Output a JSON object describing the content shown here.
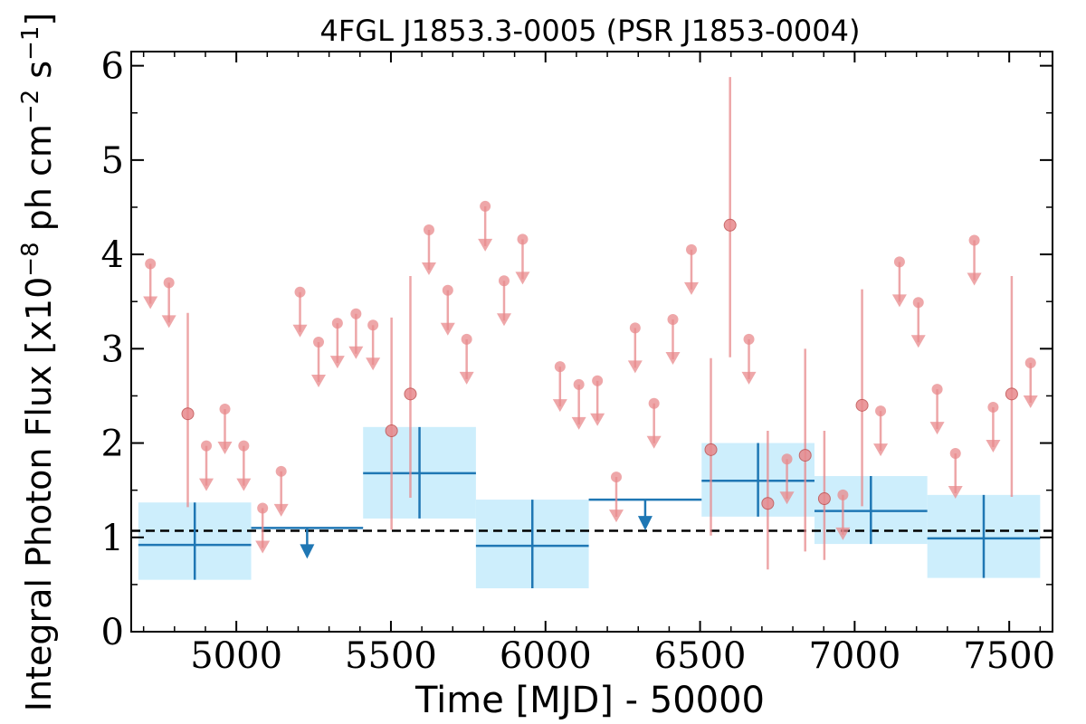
{
  "chart_data": {
    "type": "scatter",
    "title": "4FGL J1853.3-0005 (PSR J1853-0004)",
    "xlabel": "Time [MJD] - 50000",
    "ylabel": "Integral Photon Flux [x10",
    "ylabel_sup1": "−8",
    "ylabel_mid": " ph cm",
    "ylabel_sup2": "−2",
    "ylabel_mid2": " s",
    "ylabel_sup3": "−1",
    "ylabel_end": "]",
    "xlim": [
      4660,
      7640
    ],
    "ylim": [
      0,
      6.15
    ],
    "xticks": [
      5000,
      5500,
      6000,
      6500,
      7000,
      7500
    ],
    "xtick_labels": [
      "5000",
      "5500",
      "6000",
      "6500",
      "7000",
      "7500"
    ],
    "yticks": [
      0,
      1,
      2,
      3,
      4,
      5,
      6
    ],
    "ytick_labels": [
      "0",
      "1",
      "2",
      "3",
      "4",
      "5",
      "6"
    ],
    "mean_flux": 1.07,
    "colors": {
      "short_bins": "#e8898c",
      "long_bins": "#1f77b4",
      "long_bin_box": "#cdeefc",
      "mean_line": "#000000"
    },
    "short_bin_measurements": [
      {
        "x": 4843,
        "y": 2.31,
        "ylo": 1.32,
        "yhi": 3.38
      },
      {
        "x": 5502,
        "y": 2.13,
        "ylo": 1.08,
        "yhi": 3.33
      },
      {
        "x": 5563,
        "y": 2.52,
        "ylo": 1.42,
        "yhi": 3.77
      },
      {
        "x": 6535,
        "y": 1.93,
        "ylo": 1.02,
        "yhi": 2.9
      },
      {
        "x": 6597,
        "y": 4.31,
        "ylo": 2.91,
        "yhi": 5.88
      },
      {
        "x": 6719,
        "y": 1.36,
        "ylo": 0.66,
        "yhi": 2.13
      },
      {
        "x": 6840,
        "y": 1.87,
        "ylo": 0.85,
        "yhi": 3.0
      },
      {
        "x": 6902,
        "y": 1.41,
        "ylo": 0.76,
        "yhi": 2.13
      },
      {
        "x": 7024,
        "y": 2.4,
        "ylo": 1.33,
        "yhi": 3.63
      },
      {
        "x": 7508,
        "y": 2.52,
        "ylo": 1.43,
        "yhi": 3.77
      }
    ],
    "short_bin_upper_limits": [
      {
        "x": 4722,
        "y": 3.9
      },
      {
        "x": 4782,
        "y": 3.7
      },
      {
        "x": 4903,
        "y": 1.97
      },
      {
        "x": 4963,
        "y": 2.36
      },
      {
        "x": 5024,
        "y": 1.97
      },
      {
        "x": 5085,
        "y": 1.31
      },
      {
        "x": 5145,
        "y": 1.7
      },
      {
        "x": 5206,
        "y": 3.6
      },
      {
        "x": 5266,
        "y": 3.07
      },
      {
        "x": 5327,
        "y": 3.27
      },
      {
        "x": 5387,
        "y": 3.37
      },
      {
        "x": 5442,
        "y": 3.25
      },
      {
        "x": 5623,
        "y": 4.26
      },
      {
        "x": 5684,
        "y": 3.62
      },
      {
        "x": 5745,
        "y": 3.1
      },
      {
        "x": 5805,
        "y": 4.51
      },
      {
        "x": 5866,
        "y": 3.72
      },
      {
        "x": 5926,
        "y": 4.16
      },
      {
        "x": 6047,
        "y": 2.81
      },
      {
        "x": 6108,
        "y": 2.62
      },
      {
        "x": 6168,
        "y": 2.66
      },
      {
        "x": 6229,
        "y": 1.64
      },
      {
        "x": 6290,
        "y": 3.22
      },
      {
        "x": 6351,
        "y": 2.42
      },
      {
        "x": 6412,
        "y": 3.31
      },
      {
        "x": 6472,
        "y": 4.05
      },
      {
        "x": 6658,
        "y": 3.1
      },
      {
        "x": 6781,
        "y": 1.83
      },
      {
        "x": 6962,
        "y": 1.45
      },
      {
        "x": 7084,
        "y": 2.34
      },
      {
        "x": 7145,
        "y": 3.92
      },
      {
        "x": 7206,
        "y": 3.49
      },
      {
        "x": 7267,
        "y": 2.57
      },
      {
        "x": 7326,
        "y": 1.89
      },
      {
        "x": 7387,
        "y": 4.15
      },
      {
        "x": 7448,
        "y": 2.38
      },
      {
        "x": 7569,
        "y": 2.85
      }
    ],
    "long_bin_measurements": [
      {
        "x0": 4683,
        "x1": 5048,
        "y": 0.92,
        "ylo": 0.55,
        "yhi": 1.37
      },
      {
        "x0": 5410,
        "x1": 5775,
        "y": 1.68,
        "ylo": 1.2,
        "yhi": 2.17
      },
      {
        "x0": 5775,
        "x1": 6140,
        "y": 0.91,
        "ylo": 0.46,
        "yhi": 1.4
      },
      {
        "x0": 6505,
        "x1": 6870,
        "y": 1.6,
        "ylo": 1.22,
        "yhi": 2.0
      },
      {
        "x0": 6870,
        "x1": 7235,
        "y": 1.28,
        "ylo": 0.93,
        "yhi": 1.65
      },
      {
        "x0": 7235,
        "x1": 7600,
        "y": 0.99,
        "ylo": 0.57,
        "yhi": 1.45
      }
    ],
    "long_bin_upper_limits": [
      {
        "x0": 5048,
        "x1": 5410,
        "y": 1.1
      },
      {
        "x0": 6140,
        "x1": 6505,
        "y": 1.4
      }
    ]
  }
}
